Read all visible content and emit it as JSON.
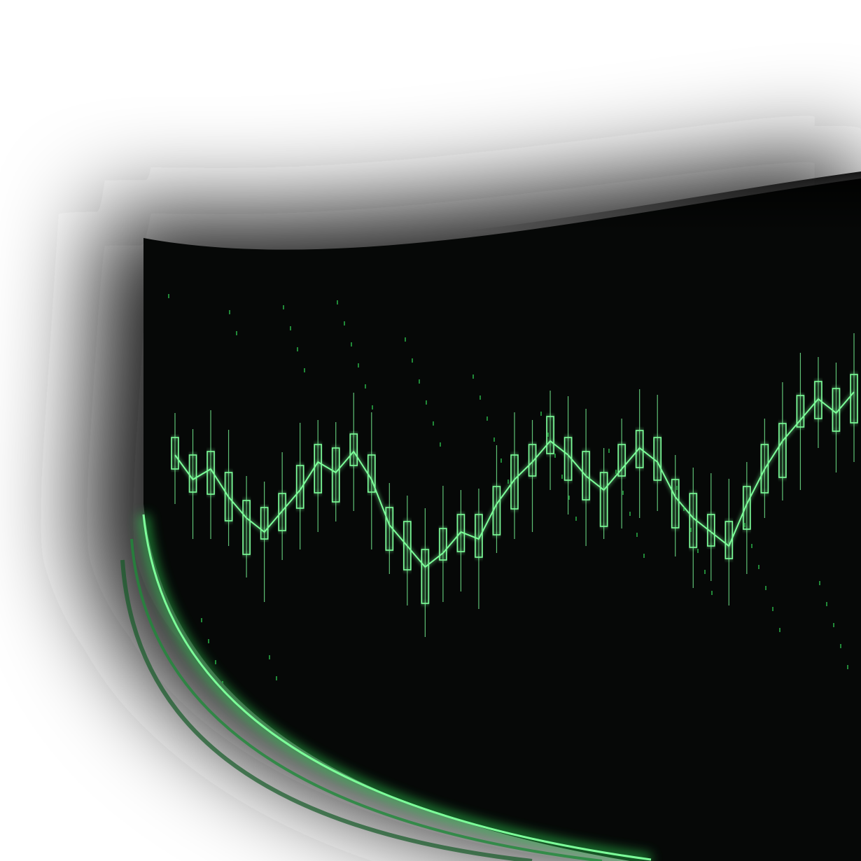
{
  "scene": {
    "subject": "glowing-green-stock-chart-on-curved-screen",
    "colors": {
      "background": "#ffffff",
      "haze": "#2a2a2a",
      "screen": "#060807",
      "accent": "#33e05a",
      "accent_bright": "#7dff9a",
      "accent_dim": "#1f8a3a"
    },
    "price_series": [
      0.62,
      0.55,
      0.58,
      0.5,
      0.44,
      0.4,
      0.46,
      0.52,
      0.6,
      0.57,
      0.63,
      0.55,
      0.42,
      0.36,
      0.3,
      0.34,
      0.4,
      0.38,
      0.48,
      0.55,
      0.6,
      0.66,
      0.62,
      0.56,
      0.52,
      0.58,
      0.64,
      0.6,
      0.5,
      0.44,
      0.4,
      0.36,
      0.48,
      0.58,
      0.66,
      0.72,
      0.78,
      0.74,
      0.8
    ]
  }
}
